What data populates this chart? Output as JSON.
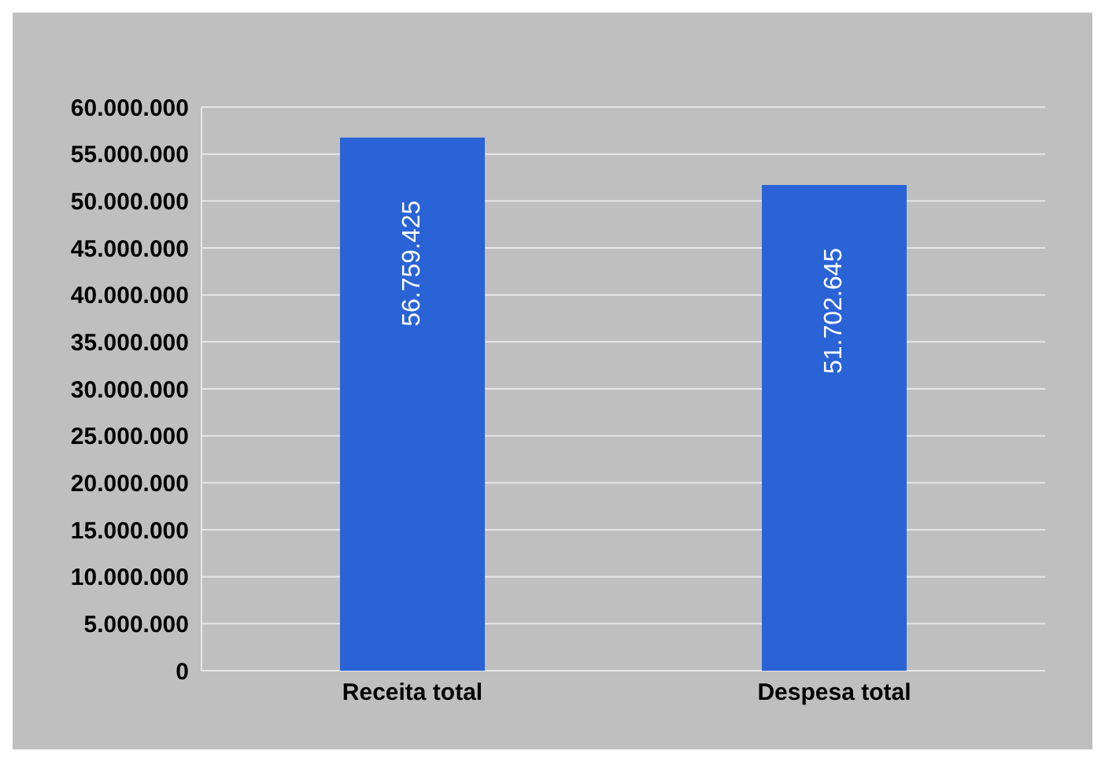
{
  "chart_data": {
    "type": "bar",
    "categories": [
      "Receita total",
      "Despesa total"
    ],
    "values": [
      56759425,
      51702645
    ],
    "value_labels": [
      "56.759.425",
      "51.702.645"
    ],
    "color": "#2a63d6",
    "ylim": [
      0,
      60000000
    ],
    "yticks": [
      {
        "value": 0,
        "label": "0"
      },
      {
        "value": 5000000,
        "label": "5.000.000"
      },
      {
        "value": 10000000,
        "label": "10.000.000"
      },
      {
        "value": 15000000,
        "label": "15.000.000"
      },
      {
        "value": 20000000,
        "label": "20.000.000"
      },
      {
        "value": 25000000,
        "label": "25.000.000"
      },
      {
        "value": 30000000,
        "label": "30.000.000"
      },
      {
        "value": 35000000,
        "label": "35.000.000"
      },
      {
        "value": 40000000,
        "label": "40.000.000"
      },
      {
        "value": 45000000,
        "label": "45.000.000"
      },
      {
        "value": 50000000,
        "label": "50.000.000"
      },
      {
        "value": 55000000,
        "label": "55.000.000"
      },
      {
        "value": 60000000,
        "label": "60.000.000"
      }
    ],
    "grid": "y"
  }
}
